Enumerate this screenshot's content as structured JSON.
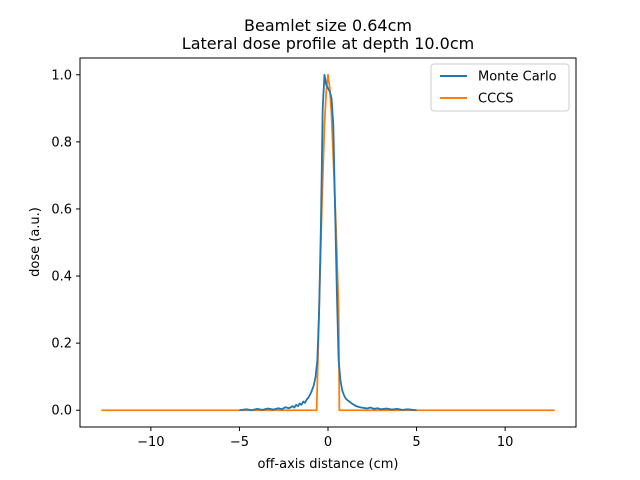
{
  "chart_data": {
    "type": "line",
    "title": "Beamlet size 0.64cm",
    "subtitle": "Lateral dose profile at depth 10.0cm",
    "xlabel": "off-axis distance (cm)",
    "ylabel": "dose (a.u.)",
    "xlim": [
      -14.0,
      14.0
    ],
    "ylim": [
      -0.05,
      1.05
    ],
    "xticks": [
      -10,
      -5,
      0,
      5,
      10
    ],
    "xtick_labels": [
      "−10",
      "−5",
      "0",
      "5",
      "10"
    ],
    "yticks": [
      0.0,
      0.2,
      0.4,
      0.6,
      0.8,
      1.0
    ],
    "ytick_labels": [
      "0.0",
      "0.2",
      "0.4",
      "0.6",
      "0.8",
      "1.0"
    ],
    "grid": false,
    "legend_position": "top-right",
    "series": [
      {
        "name": "Monte Carlo",
        "color": "#1f77b4",
        "x": [
          -5.0,
          -4.6,
          -4.3,
          -4.0,
          -3.7,
          -3.4,
          -3.1,
          -2.8,
          -2.6,
          -2.4,
          -2.2,
          -2.0,
          -1.9,
          -1.8,
          -1.7,
          -1.6,
          -1.5,
          -1.4,
          -1.3,
          -1.2,
          -1.1,
          -1.0,
          -0.9,
          -0.8,
          -0.7,
          -0.6,
          -0.5,
          -0.4,
          -0.3,
          -0.2,
          -0.1,
          0.0,
          0.1,
          0.2,
          0.3,
          0.4,
          0.5,
          0.6,
          0.7,
          0.8,
          0.9,
          1.0,
          1.1,
          1.2,
          1.3,
          1.4,
          1.5,
          1.6,
          1.8,
          2.0,
          2.2,
          2.4,
          2.6,
          2.8,
          3.0,
          3.3,
          3.6,
          3.9,
          4.2,
          4.5,
          5.0
        ],
        "y": [
          0.0,
          0.003,
          0.0,
          0.004,
          0.001,
          0.005,
          0.002,
          0.006,
          0.003,
          0.009,
          0.006,
          0.012,
          0.008,
          0.016,
          0.012,
          0.02,
          0.016,
          0.026,
          0.022,
          0.032,
          0.038,
          0.048,
          0.06,
          0.075,
          0.1,
          0.15,
          0.3,
          0.55,
          0.9,
          1.0,
          0.97,
          0.96,
          0.95,
          0.93,
          0.85,
          0.6,
          0.35,
          0.15,
          0.09,
          0.06,
          0.045,
          0.035,
          0.03,
          0.026,
          0.022,
          0.018,
          0.015,
          0.012,
          0.009,
          0.007,
          0.005,
          0.008,
          0.004,
          0.006,
          0.003,
          0.005,
          0.002,
          0.004,
          0.001,
          0.003,
          0.0
        ]
      },
      {
        "name": "CCCS",
        "color": "#ff7f0e",
        "x": [
          -12.8,
          -0.64,
          -0.5,
          -0.35,
          -0.2,
          -0.1,
          0.0,
          0.1,
          0.2,
          0.3,
          0.45,
          0.6,
          0.64,
          0.8,
          12.8
        ],
        "y": [
          0.0,
          0.0,
          0.3,
          0.6,
          0.85,
          0.95,
          1.0,
          0.96,
          0.88,
          0.75,
          0.55,
          0.3,
          0.0,
          0.0,
          0.0
        ]
      }
    ]
  }
}
